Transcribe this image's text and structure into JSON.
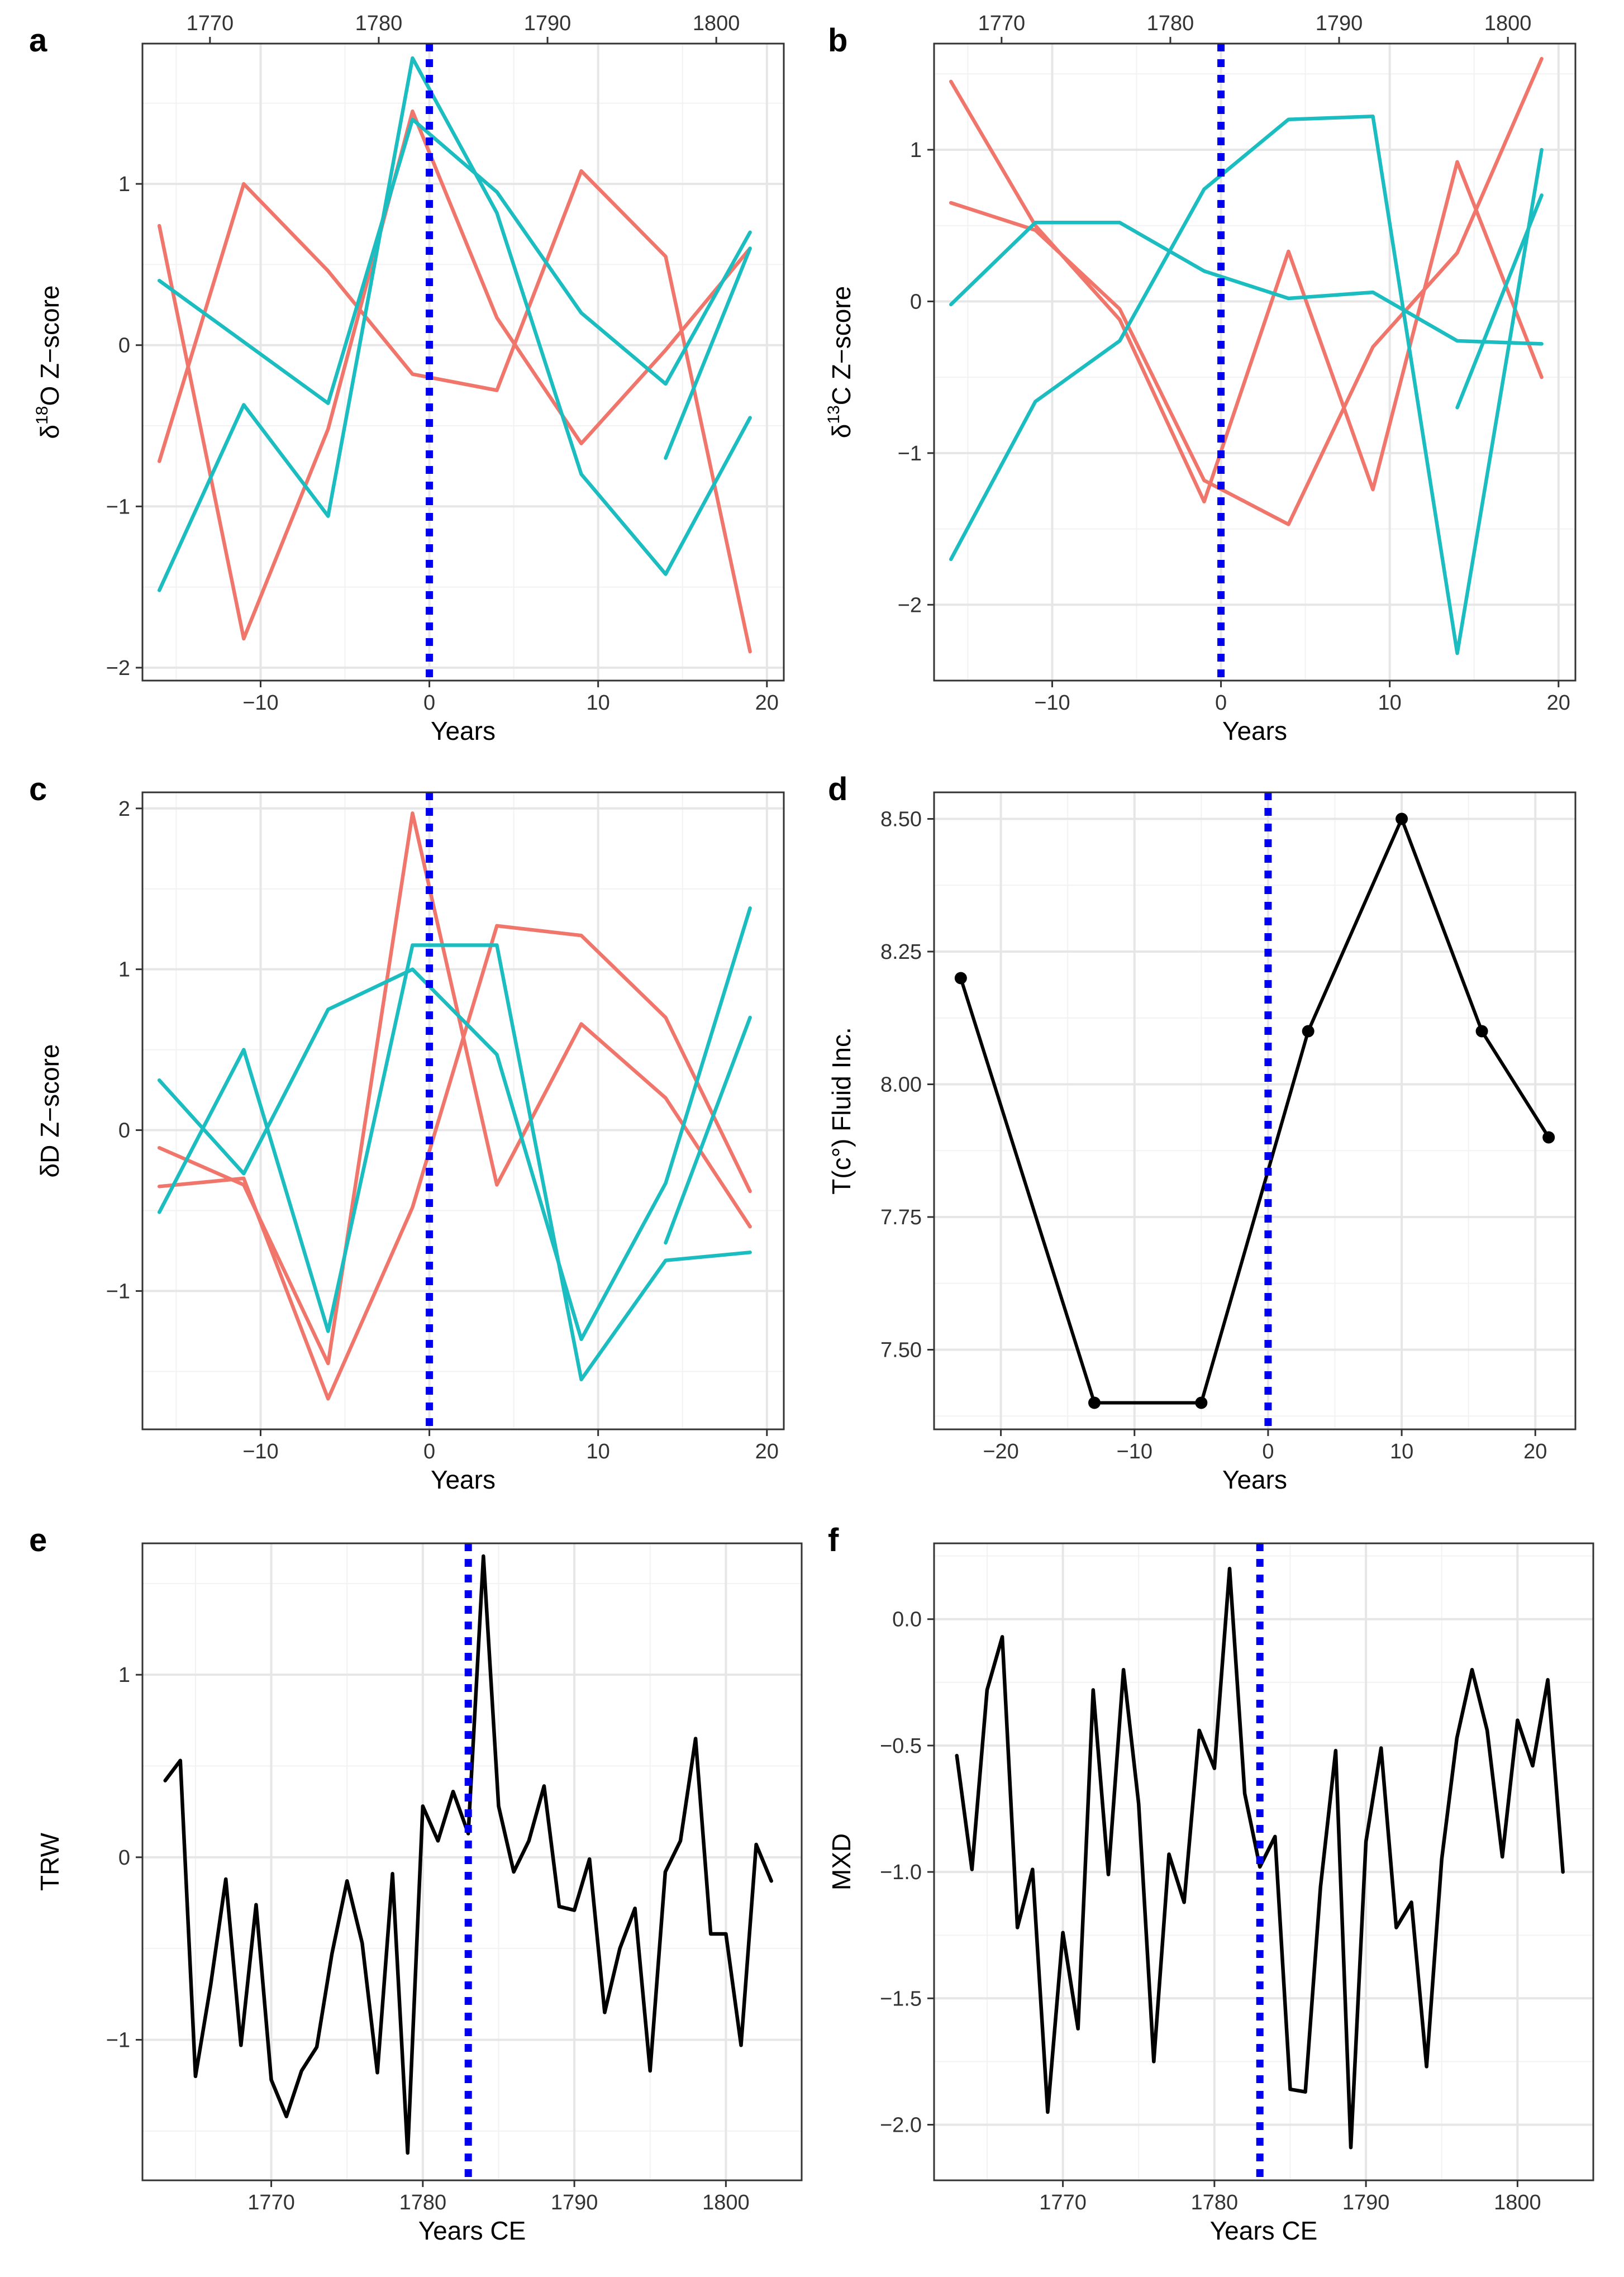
{
  "colors": {
    "red": "#F0766C",
    "teal": "#1BBDC0",
    "black": "#000000",
    "eventLine": "#0000EE"
  },
  "chart_data": [
    {
      "id": "a",
      "panel_label": "a",
      "type": "line",
      "xlabel": "Years",
      "ylabel": "δ18O Z-score",
      "ylabel_parts": [
        "δ",
        "18",
        "O Z−score"
      ],
      "xlim": [
        -17,
        21
      ],
      "ylim": [
        -2.08,
        1.87
      ],
      "x_ticks": [
        -10,
        0,
        10,
        20
      ],
      "x_tick_labels": [
        "−10",
        "0",
        "10",
        "20"
      ],
      "y_ticks": [
        -2,
        -1,
        0,
        1
      ],
      "y_tick_labels": [
        "−2",
        "−1",
        "0",
        "1"
      ],
      "top_axis": {
        "label_offset": 1783,
        "ticks": [
          1770,
          1780,
          1790,
          1800
        ],
        "tick_labels": [
          "1770",
          "1780",
          "1790",
          "1800"
        ]
      },
      "event_x": 0,
      "series": [
        {
          "name": "red-1",
          "color": "red",
          "x": [
            -16,
            -11,
            -6,
            -1,
            4,
            9,
            14,
            19
          ],
          "y": [
            0.74,
            -1.82,
            -0.52,
            1.45,
            0.17,
            -0.61,
            -0.03,
            0.6
          ]
        },
        {
          "name": "red-2",
          "color": "red",
          "x": [
            -16,
            -11,
            -6,
            -1,
            4,
            9,
            14,
            19
          ],
          "y": [
            -0.72,
            1.0,
            0.46,
            -0.18,
            -0.28,
            1.08,
            0.55,
            -1.9
          ]
        },
        {
          "name": "teal-1",
          "color": "teal",
          "x": [
            -16,
            -11,
            -6,
            -1,
            4,
            9,
            14,
            19
          ],
          "y": [
            -1.52,
            -0.37,
            -1.06,
            1.78,
            0.82,
            -0.8,
            -1.42,
            -0.45
          ]
        },
        {
          "name": "teal-2",
          "color": "teal",
          "x": [
            -16,
            -11,
            -6,
            -1,
            4,
            9,
            14,
            19
          ],
          "y": [
            0.4,
            0.02,
            -0.36,
            1.4,
            0.95,
            0.2,
            -0.24,
            0.7
          ]
        },
        {
          "name": "teal-3",
          "color": "teal",
          "x": [
            14,
            19
          ],
          "y": [
            -0.7,
            0.6
          ]
        }
      ]
    },
    {
      "id": "b",
      "panel_label": "b",
      "type": "line",
      "xlabel": "Years",
      "ylabel": "δ13C Z-score",
      "ylabel_parts": [
        "δ",
        "13",
        "C Z−score"
      ],
      "xlim": [
        -17,
        21
      ],
      "ylim": [
        -2.5,
        1.7
      ],
      "x_ticks": [
        -10,
        0,
        10,
        20
      ],
      "x_tick_labels": [
        "−10",
        "0",
        "10",
        "20"
      ],
      "y_ticks": [
        -2,
        -1,
        0,
        1
      ],
      "y_tick_labels": [
        "−2",
        "−1",
        "0",
        "1"
      ],
      "top_axis": {
        "label_offset": 1783,
        "ticks": [
          1770,
          1780,
          1790,
          1800
        ],
        "tick_labels": [
          "1770",
          "1780",
          "1790",
          "1800"
        ]
      },
      "event_x": 0,
      "series": [
        {
          "name": "red-1",
          "color": "red",
          "x": [
            -16,
            -11,
            -6,
            -1,
            4,
            9,
            14,
            19
          ],
          "y": [
            1.45,
            0.5,
            -0.12,
            -1.32,
            0.33,
            -1.24,
            0.92,
            -0.5
          ]
        },
        {
          "name": "red-2",
          "color": "red",
          "x": [
            -16,
            -11,
            -6,
            -1,
            4,
            9,
            14,
            19
          ],
          "y": [
            0.65,
            0.47,
            -0.05,
            -1.18,
            -1.47,
            -0.3,
            0.32,
            1.6
          ]
        },
        {
          "name": "teal-1",
          "color": "teal",
          "x": [
            -16,
            -11,
            -6,
            -1,
            4,
            9,
            14,
            19
          ],
          "y": [
            -1.7,
            -0.66,
            -0.26,
            0.74,
            1.2,
            1.22,
            -2.32,
            1.0
          ]
        },
        {
          "name": "teal-2",
          "color": "teal",
          "x": [
            -16,
            -11,
            -6,
            -1,
            4,
            9,
            14,
            19
          ],
          "y": [
            -0.02,
            0.52,
            0.52,
            0.2,
            0.02,
            0.06,
            -0.26,
            -0.28
          ]
        },
        {
          "name": "teal-3",
          "color": "teal",
          "x": [
            14,
            19
          ],
          "y": [
            -0.7,
            0.7
          ]
        }
      ]
    },
    {
      "id": "c",
      "panel_label": "c",
      "type": "line",
      "xlabel": "Years",
      "ylabel": "δD Z-score",
      "ylabel_parts": [
        "δD Z−score"
      ],
      "xlim": [
        -17,
        21
      ],
      "ylim": [
        -1.86,
        2.1
      ],
      "x_ticks": [
        -10,
        0,
        10,
        20
      ],
      "x_tick_labels": [
        "−10",
        "0",
        "10",
        "20"
      ],
      "y_ticks": [
        -1,
        0,
        1,
        2
      ],
      "y_tick_labels": [
        "−1",
        "0",
        "1",
        "2"
      ],
      "event_x": 0,
      "series": [
        {
          "name": "red-1",
          "color": "red",
          "x": [
            -16,
            -11,
            -6,
            -1,
            4,
            9,
            14,
            19
          ],
          "y": [
            -0.11,
            -0.34,
            -1.45,
            1.97,
            -0.34,
            0.66,
            0.2,
            -0.6
          ]
        },
        {
          "name": "red-2",
          "color": "red",
          "x": [
            -16,
            -11,
            -6,
            -1,
            4,
            9,
            14,
            19
          ],
          "y": [
            -0.35,
            -0.3,
            -1.67,
            -0.48,
            1.27,
            1.21,
            0.7,
            -0.38
          ]
        },
        {
          "name": "teal-1",
          "color": "teal",
          "x": [
            -16,
            -11,
            -6,
            -1,
            4,
            9,
            14,
            19
          ],
          "y": [
            -0.51,
            0.5,
            -1.25,
            1.15,
            1.15,
            -1.55,
            -0.81,
            -0.76
          ]
        },
        {
          "name": "teal-2",
          "color": "teal",
          "x": [
            -16,
            -11,
            -6,
            -1,
            4,
            9,
            14,
            19
          ],
          "y": [
            0.31,
            -0.27,
            0.75,
            1.0,
            0.47,
            -1.3,
            -0.33,
            1.38
          ]
        },
        {
          "name": "teal-3",
          "color": "teal",
          "x": [
            14,
            19
          ],
          "y": [
            -0.7,
            0.7
          ]
        }
      ]
    },
    {
      "id": "d",
      "panel_label": "d",
      "type": "line",
      "xlabel": "Years",
      "ylabel": "T(c°) Fluid Inc.",
      "ylabel_parts": [
        "T(c°) Fluid Inc."
      ],
      "xlim": [
        -25,
        23
      ],
      "ylim": [
        7.35,
        8.55
      ],
      "x_ticks": [
        -20,
        -10,
        0,
        10,
        20
      ],
      "x_tick_labels": [
        "−20",
        "−10",
        "0",
        "10",
        "20"
      ],
      "y_ticks": [
        7.5,
        7.75,
        8.0,
        8.25,
        8.5
      ],
      "y_tick_labels": [
        "7.50",
        "7.75",
        "8.00",
        "8.25",
        "8.50"
      ],
      "event_x": 0,
      "markers": true,
      "series": [
        {
          "name": "temperature",
          "color": "black",
          "x": [
            -23,
            -13,
            -5,
            3,
            10,
            16,
            21
          ],
          "y": [
            8.2,
            7.4,
            7.4,
            8.1,
            8.5,
            8.1,
            7.9
          ]
        }
      ]
    },
    {
      "id": "e",
      "panel_label": "e",
      "type": "line",
      "xlabel": "Years CE",
      "ylabel": "TRW",
      "ylabel_parts": [
        "TRW"
      ],
      "xlim": [
        1761.5,
        1805
      ],
      "ylim": [
        -1.77,
        1.72
      ],
      "x_ticks": [
        1770,
        1780,
        1790,
        1800
      ],
      "x_tick_labels": [
        "1770",
        "1780",
        "1790",
        "1800"
      ],
      "y_ticks": [
        -1,
        0,
        1
      ],
      "y_tick_labels": [
        "−1",
        "0",
        "1"
      ],
      "event_x": 1783,
      "series": [
        {
          "name": "TRW",
          "color": "black",
          "x": [
            1763,
            1764,
            1765,
            1766,
            1767,
            1768,
            1769,
            1770,
            1771,
            1772,
            1773,
            1774,
            1775,
            1776,
            1777,
            1778,
            1779,
            1780,
            1781,
            1782,
            1783,
            1784,
            1785,
            1786,
            1787,
            1788,
            1789,
            1790,
            1791,
            1792,
            1793,
            1794,
            1795,
            1796,
            1797,
            1798,
            1799,
            1800,
            1801,
            1802,
            1803
          ],
          "y": [
            0.42,
            0.53,
            -1.2,
            -0.7,
            -0.12,
            -1.03,
            -0.26,
            -1.22,
            -1.42,
            -1.17,
            -1.04,
            -0.53,
            -0.13,
            -0.47,
            -1.18,
            -0.09,
            -1.62,
            0.28,
            0.09,
            0.36,
            0.13,
            1.65,
            0.28,
            -0.08,
            0.09,
            0.39,
            -0.27,
            -0.29,
            -0.01,
            -0.85,
            -0.5,
            -0.28,
            -1.17,
            -0.08,
            0.09,
            0.65,
            -0.42,
            -0.42,
            -1.03,
            0.07,
            -0.13
          ]
        }
      ]
    },
    {
      "id": "f",
      "panel_label": "f",
      "type": "line",
      "xlabel": "Years CE",
      "ylabel": "MXD",
      "ylabel_parts": [
        "MXD"
      ],
      "xlim": [
        1761.5,
        1805
      ],
      "ylim": [
        -2.22,
        0.3
      ],
      "x_ticks": [
        1770,
        1780,
        1790,
        1800
      ],
      "x_tick_labels": [
        "1770",
        "1780",
        "1790",
        "1800"
      ],
      "y_ticks": [
        -2.0,
        -1.5,
        -1.0,
        -0.5,
        0.0
      ],
      "y_tick_labels": [
        "−2.0",
        "−1.5",
        "−1.0",
        "−0.5",
        "0.0"
      ],
      "event_x": 1783,
      "series": [
        {
          "name": "MXD",
          "color": "black",
          "x": [
            1763,
            1764,
            1765,
            1766,
            1767,
            1768,
            1769,
            1770,
            1771,
            1772,
            1773,
            1774,
            1775,
            1776,
            1777,
            1778,
            1779,
            1780,
            1781,
            1782,
            1783,
            1784,
            1785,
            1786,
            1787,
            1788,
            1789,
            1790,
            1791,
            1792,
            1793,
            1794,
            1795,
            1796,
            1797,
            1798,
            1799,
            1800,
            1801,
            1802,
            1803
          ],
          "y": [
            -0.54,
            -0.99,
            -0.28,
            -0.07,
            -1.22,
            -0.99,
            -1.95,
            -1.24,
            -1.62,
            -0.28,
            -1.01,
            -0.2,
            -0.73,
            -1.75,
            -0.93,
            -1.12,
            -0.44,
            -0.59,
            0.2,
            -0.69,
            -0.98,
            -0.86,
            -1.86,
            -1.87,
            -1.06,
            -0.52,
            -2.09,
            -0.88,
            -0.51,
            -1.22,
            -1.12,
            -1.77,
            -0.95,
            -0.47,
            -0.2,
            -0.44,
            -0.94,
            -0.4,
            -0.58,
            -0.24,
            -1.0
          ]
        }
      ]
    }
  ]
}
